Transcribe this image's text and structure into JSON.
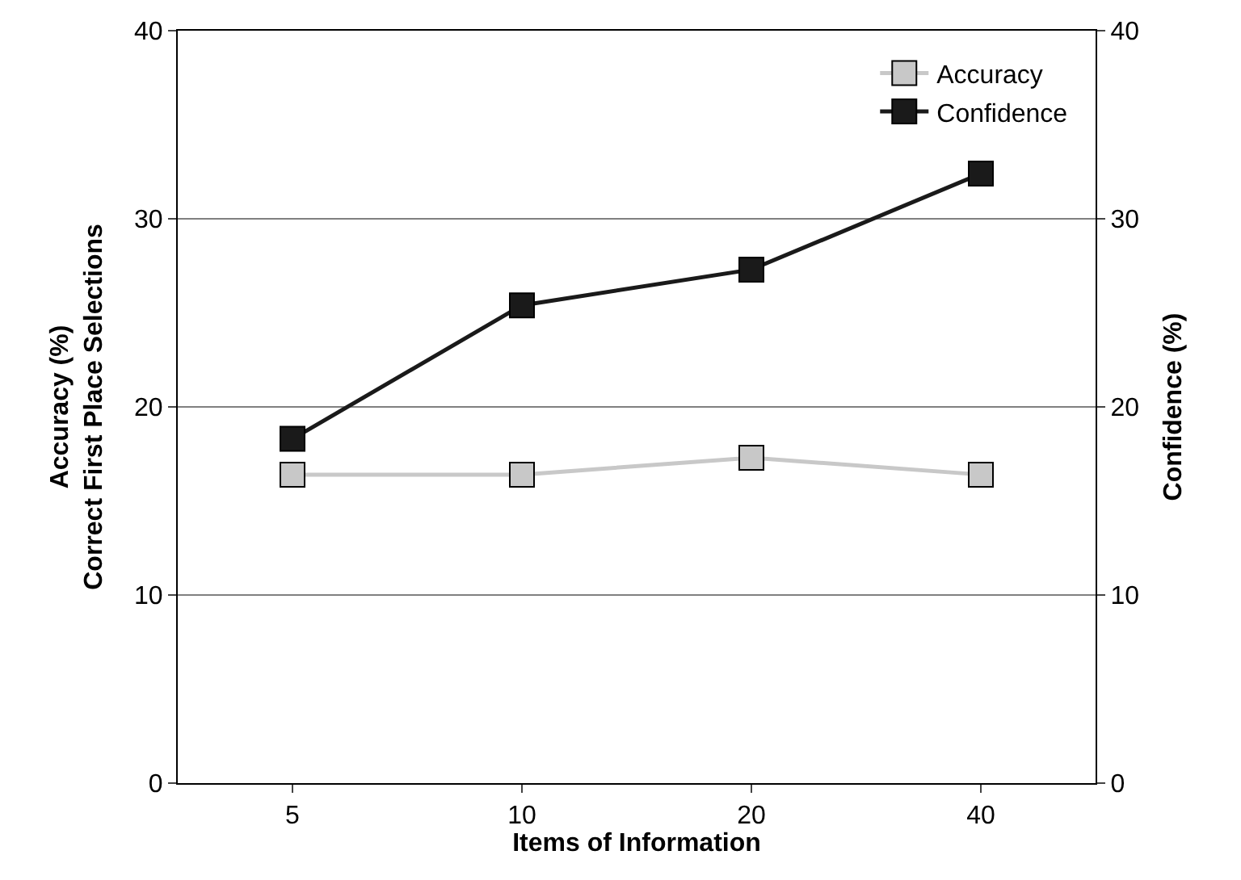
{
  "chart_data": {
    "type": "line",
    "xlabel": "Items of Information",
    "ylabel": "Accuracy (%)\nCorrect First Place Selections",
    "y2label": "Confidence (%)",
    "categories": [
      "5",
      "10",
      "20",
      "40"
    ],
    "series": [
      {
        "name": "Accuracy",
        "color": "#c8c8c8",
        "values": [
          16.4,
          16.4,
          17.3,
          16.4
        ]
      },
      {
        "name": "Confidence",
        "color": "#1a1a1a",
        "values": [
          18.3,
          25.4,
          27.3,
          32.4
        ],
        "axis": "y2"
      }
    ],
    "ylim": [
      0,
      40
    ],
    "yticks": [
      0,
      10,
      20,
      30,
      40
    ],
    "y2lim": [
      0,
      40
    ],
    "y2ticks": [
      0,
      10,
      20,
      30,
      40
    ],
    "grid": "y",
    "legend": "top right",
    "marker": "square",
    "line_style": "solid"
  }
}
